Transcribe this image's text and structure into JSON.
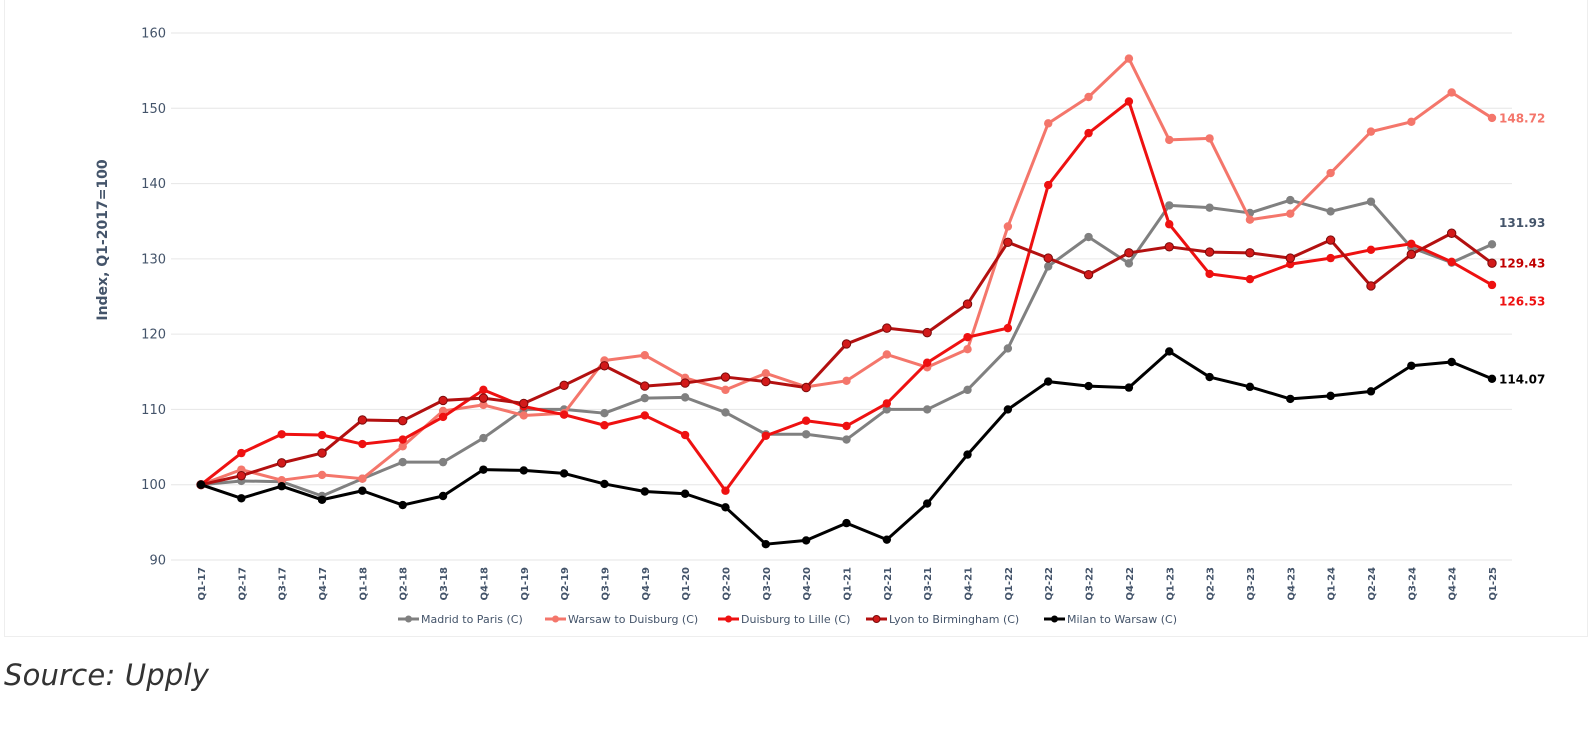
{
  "chart_data": {
    "type": "line",
    "ylabel": "Index, Q1-2017=100",
    "ylim": [
      90,
      160
    ],
    "yticks": [
      90,
      100,
      110,
      120,
      130,
      140,
      150,
      160
    ],
    "grid": true,
    "legend_position": "bottom",
    "categories": [
      "Q1-17",
      "Q2-17",
      "Q3-17",
      "Q4-17",
      "Q1-18",
      "Q2-18",
      "Q3-18",
      "Q4-18",
      "Q1-19",
      "Q2-19",
      "Q3-19",
      "Q4-19",
      "Q1-20",
      "Q2-20",
      "Q3-20",
      "Q4-20",
      "Q1-21",
      "Q2-21",
      "Q3-21",
      "Q4-21",
      "Q1-22",
      "Q2-22",
      "Q3-22",
      "Q4-22",
      "Q1-23",
      "Q2-23",
      "Q3-23",
      "Q4-23",
      "Q1-24",
      "Q2-24",
      "Q3-24",
      "Q4-24",
      "Q1-25"
    ],
    "series": [
      {
        "name": "Madrid to Paris (C)",
        "color": "#808080",
        "end_label": "131.93",
        "end_label_color": "#44546a",
        "values": [
          100,
          100.5,
          100.4,
          98.5,
          100.8,
          103,
          103,
          106.2,
          110,
          110,
          109.5,
          111.5,
          111.6,
          109.6,
          106.7,
          106.7,
          106,
          110,
          110,
          112.6,
          118.1,
          129,
          132.9,
          129.4,
          137.1,
          136.8,
          136.1,
          137.8,
          136.3,
          137.6,
          131.5,
          129.5,
          131.93
        ]
      },
      {
        "name": "Warsaw to Duisburg (C)",
        "color": "#f4766b",
        "end_label": "148.72",
        "end_label_color": "#f4766b",
        "values": [
          100,
          102,
          100.6,
          101.3,
          100.8,
          105.1,
          109.8,
          110.6,
          109.2,
          109.5,
          116.5,
          117.2,
          114.2,
          112.6,
          114.8,
          113,
          113.8,
          117.3,
          115.6,
          118,
          134.3,
          148,
          151.5,
          156.6,
          145.8,
          146,
          135.2,
          136,
          141.4,
          146.9,
          148.2,
          152.1,
          148.72
        ]
      },
      {
        "name": "Duisburg to Lille (C)",
        "color": "#ee1111",
        "end_label": "126.53",
        "end_label_color": "#ee1111",
        "values": [
          100,
          104.2,
          106.7,
          106.6,
          105.4,
          106,
          109,
          112.6,
          110.4,
          109.3,
          107.9,
          109.2,
          106.6,
          99.2,
          106.5,
          108.5,
          107.8,
          110.8,
          116.2,
          119.6,
          120.8,
          139.8,
          146.7,
          150.9,
          134.6,
          128,
          127.3,
          129.3,
          130.1,
          131.2,
          132,
          129.6,
          126.53
        ]
      },
      {
        "name": "Lyon to Birmingham (C)",
        "color": "#b31010",
        "end_label": "129.43",
        "end_label_color": "#c00000",
        "values": [
          100,
          101.2,
          102.9,
          104.2,
          108.6,
          108.5,
          111.2,
          111.5,
          110.8,
          113.2,
          115.8,
          113.1,
          113.5,
          114.3,
          113.7,
          112.9,
          118.7,
          120.8,
          120.2,
          124,
          132.2,
          130.1,
          127.9,
          130.8,
          131.6,
          130.9,
          130.8,
          130.1,
          132.5,
          126.4,
          130.6,
          133.4,
          129.43
        ]
      },
      {
        "name": "Milan to Warsaw (C)",
        "color": "#000000",
        "end_label": "114.07",
        "end_label_color": "#000000",
        "values": [
          100,
          98.2,
          99.8,
          98,
          99.2,
          97.3,
          98.5,
          102,
          101.9,
          101.5,
          100.1,
          99.1,
          98.8,
          97,
          92.1,
          92.6,
          94.9,
          92.7,
          97.5,
          104,
          110,
          113.7,
          113.1,
          112.9,
          117.7,
          114.3,
          113,
          111.4,
          111.8,
          112.4,
          115.8,
          116.3,
          114.07
        ]
      }
    ]
  },
  "source_note": "Source: Upply"
}
